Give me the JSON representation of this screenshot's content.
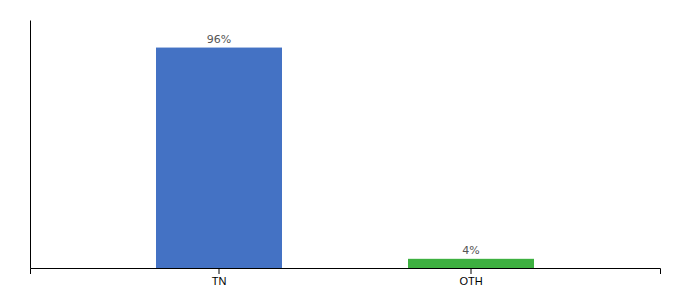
{
  "chart_data": {
    "type": "bar",
    "categories": [
      "TN",
      "OTH"
    ],
    "values": [
      96,
      4
    ],
    "value_labels": [
      "96%",
      "4%"
    ],
    "colors": [
      "#4472c4",
      "#3db040"
    ],
    "ylim": [
      0,
      108
    ],
    "data_labels": true,
    "tick_labels": "x",
    "grid": false
  }
}
